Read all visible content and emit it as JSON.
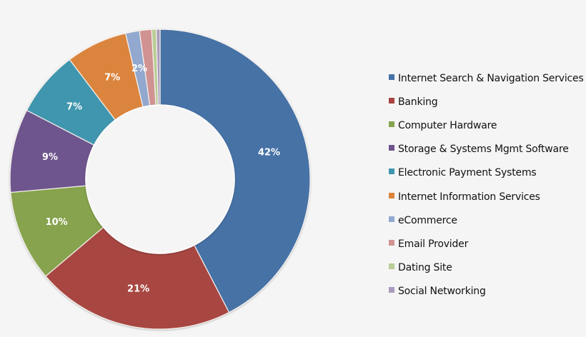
{
  "chart_data": {
    "type": "pie",
    "subtype": "donut",
    "title": "",
    "start_angle_deg": 0,
    "direction": "clockwise",
    "legend_position": "right",
    "categories": [
      "Internet Search & Navigation Services",
      "Banking",
      "Computer Hardware",
      "Storage & Systems Mgmt Software",
      "Electronic Payment Systems",
      "Internet Information Services",
      "eCommerce",
      "Email Provider",
      "Dating Site",
      "Social Networking"
    ],
    "values": [
      42.4,
      21.4,
      9.8,
      9.0,
      7.1,
      6.6,
      1.5,
      1.3,
      0.5,
      0.4
    ],
    "data_labels": [
      "42%",
      "21%",
      "10%",
      "9%",
      "7%",
      "7%",
      "2%",
      "",
      "",
      ""
    ],
    "colors": [
      "#4672a6",
      "#a84643",
      "#87a34d",
      "#6e548d",
      "#3f96ae",
      "#db843c",
      "#92a8ce",
      "#d09392",
      "#b9cd96",
      "#a99bbd"
    ],
    "units": "%"
  },
  "legend": {
    "items": [
      {
        "label": "Internet Search & Navigation Services",
        "color": "#4672a6"
      },
      {
        "label": "Banking",
        "color": "#a84643"
      },
      {
        "label": "Computer Hardware",
        "color": "#87a34d"
      },
      {
        "label": "Storage & Systems Mgmt Software",
        "color": "#6e548d"
      },
      {
        "label": "Electronic Payment Systems",
        "color": "#3f96ae"
      },
      {
        "label": "Internet Information Services",
        "color": "#db843c"
      },
      {
        "label": "eCommerce",
        "color": "#92a8ce"
      },
      {
        "label": "Email Provider",
        "color": "#d09392"
      },
      {
        "label": "Dating Site",
        "color": "#b9cd96"
      },
      {
        "label": "Social Networking",
        "color": "#a99bbd"
      }
    ]
  }
}
